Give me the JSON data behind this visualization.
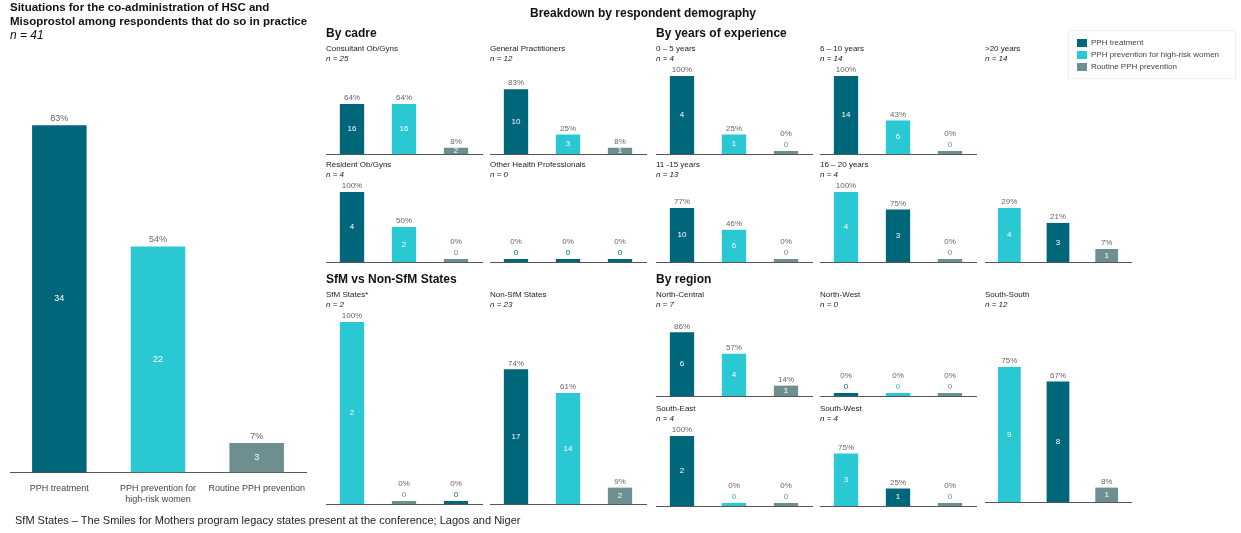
{
  "chart_data": [
    {
      "type": "bar",
      "title": "Situations for the co-administration of HSC and Misoprostol among respondents that do so in practice",
      "subtitle": "n = 41",
      "categories": [
        "PPH treatment",
        "PPH prevention for high-risk women",
        "Routine PPH prevention"
      ],
      "stacked": true,
      "series": [
        {
          "name": "PPH treatment",
          "color": "#00667a",
          "values": [
            83,
            null,
            null
          ],
          "value_labels": [
            "83%",
            null,
            null
          ]
        },
        {
          "name": "PPH prevention for high-risk women",
          "color": "#29c8d2",
          "values": [
            null,
            54,
            null
          ],
          "value_labels": [
            null,
            "54%",
            null
          ]
        },
        {
          "name": "Routine PPH prevention",
          "color": "#6e8f8f",
          "values": [
            null,
            null,
            7
          ],
          "value_labels": [
            null,
            null,
            "7%"
          ]
        }
      ],
      "annotations": [
        "34",
        "22",
        "3"
      ],
      "legend": "top right"
    },
    {
      "type": "other",
      "title": "Breakdown by respondent demography"
    },
    {
      "type": "other",
      "title": "By cadre"
    },
    {
      "type": "bar",
      "title": "Consultant Ob/Gyns",
      "subtitle": "n = 25",
      "categories": [
        null,
        null,
        null
      ],
      "values": [
        64,
        64,
        8
      ],
      "colors": [
        "#00667a",
        "#29c8d2",
        "#6e8f8f"
      ],
      "value_labels": [
        "64%",
        "64%",
        "8%"
      ],
      "annotations": [
        "16",
        "16",
        "2"
      ]
    },
    {
      "type": "bar",
      "title": "General Practitioners",
      "subtitle": "n = 12",
      "categories": [
        null,
        null,
        null
      ],
      "values": [
        83,
        25,
        8
      ],
      "colors": [
        "#00667a",
        "#29c8d2",
        "#6e8f8f"
      ],
      "value_labels": [
        "83%",
        "25%",
        "8%"
      ],
      "annotations": [
        "10",
        "3",
        "1"
      ]
    },
    {
      "type": "bar",
      "title": "Resident Ob/Gyns",
      "subtitle": "n = 4",
      "categories": [
        null,
        null,
        null
      ],
      "values": [
        100,
        50,
        0
      ],
      "colors": [
        "#00667a",
        "#29c8d2",
        "#6e8f8f"
      ],
      "value_labels": [
        "100%",
        "50%",
        "0%"
      ],
      "annotations": [
        "4",
        "2",
        "0"
      ]
    },
    {
      "type": "other",
      "title": "Other Health Professionals",
      "subtitle": "n = 0",
      "categories": [
        null,
        null,
        null
      ],
      "values": [
        0,
        0,
        0
      ],
      "colors": [
        "#00667a",
        "#00667a",
        "#00667a"
      ],
      "value_labels": [
        "0%",
        "0%",
        "0%"
      ],
      "annotations": [
        "0",
        "0",
        "0"
      ]
    },
    {
      "type": "other",
      "title": "SfM vs Non-SfM States"
    },
    {
      "type": "bar",
      "title": "SfM States*",
      "subtitle": "n = 2",
      "categories": [
        null,
        null,
        null
      ],
      "values": [
        100,
        0,
        0
      ],
      "colors": [
        "#29c8d2",
        "#6e8f8f",
        "#00667a"
      ],
      "value_labels": [
        "100%",
        "0%",
        "0%"
      ],
      "annotations": [
        "2",
        "0",
        "0"
      ]
    },
    {
      "type": "bar",
      "title": "Non-SfM States",
      "subtitle": "n = 23",
      "categories": [
        null,
        null,
        null
      ],
      "values": [
        74,
        61,
        9
      ],
      "colors": [
        "#00667a",
        "#29c8d2",
        "#6e8f8f"
      ],
      "value_labels": [
        "74%",
        "61%",
        "9%"
      ],
      "annotations": [
        "17",
        "14",
        "2"
      ]
    },
    {
      "type": "other",
      "title": "By years of experience"
    },
    {
      "type": "bar",
      "title": "0 – 5 years",
      "subtitle": "n = 4",
      "categories": [
        null,
        null,
        null
      ],
      "values": [
        100,
        25,
        0
      ],
      "colors": [
        "#00667a",
        "#29c8d2",
        "#6e8f8f"
      ],
      "value_labels": [
        "100%",
        "25%",
        "0%"
      ],
      "annotations": [
        "4",
        "1",
        "0"
      ]
    },
    {
      "type": "bar",
      "title": "6 – 10 years",
      "subtitle": "n = 14",
      "categories": [
        null,
        null,
        null
      ],
      "values": [
        100,
        43,
        0
      ],
      "colors": [
        "#00667a",
        "#29c8d2",
        "#6e8f8f"
      ],
      "value_labels": [
        "100%",
        "43%",
        "0%"
      ],
      "annotations": [
        "14",
        "6",
        "0"
      ]
    },
    {
      "type": "bar",
      "title": ">20 years",
      "subtitle": "n = 14",
      "categories": [
        null,
        null,
        null
      ],
      "values": [
        29,
        21,
        7
      ],
      "colors": [
        "#29c8d2",
        "#00667a",
        "#6e8f8f"
      ],
      "value_labels": [
        "29%",
        "21%",
        "7%"
      ],
      "annotations": [
        "4",
        "3",
        "1"
      ]
    },
    {
      "type": "bar",
      "title": "11 -15 years",
      "subtitle": "n = 13",
      "categories": [
        null,
        null,
        null
      ],
      "values": [
        77,
        46,
        0
      ],
      "colors": [
        "#00667a",
        "#29c8d2",
        "#6e8f8f"
      ],
      "value_labels": [
        "77%",
        "46%",
        "0%"
      ],
      "annotations": [
        "10",
        "6",
        "0"
      ]
    },
    {
      "type": "bar",
      "title": "16 – 20 years",
      "subtitle": "n = 4",
      "categories": [
        null,
        null,
        null
      ],
      "values": [
        100,
        75,
        0
      ],
      "colors": [
        "#29c8d2",
        "#00667a",
        "#6e8f8f"
      ],
      "value_labels": [
        "100%",
        "75%",
        "0%"
      ],
      "annotations": [
        "4",
        "3",
        "0"
      ]
    },
    {
      "type": "other",
      "title": "By region"
    },
    {
      "type": "bar",
      "title": "North-Central",
      "subtitle": "n = 7",
      "categories": [
        null,
        null,
        null
      ],
      "values": [
        86,
        57,
        14
      ],
      "colors": [
        "#00667a",
        "#29c8d2",
        "#6e8f8f"
      ],
      "value_labels": [
        "86%",
        "57%",
        "14%"
      ],
      "annotations": [
        "6",
        "4",
        "1"
      ]
    },
    {
      "type": "other",
      "title": "North-West",
      "subtitle": "n = 0",
      "categories": [
        null,
        null,
        null
      ],
      "values": [
        0,
        0,
        0
      ],
      "colors": [
        "#00667a",
        "#29c8d2",
        "#6e8f8f"
      ],
      "value_labels": [
        "0%",
        "0%",
        "0%"
      ],
      "annotations": [
        "0",
        "0",
        "0"
      ]
    },
    {
      "type": "bar",
      "title": "South-South",
      "subtitle": "n = 12",
      "categories": [
        null,
        null,
        null
      ],
      "values": [
        75,
        67,
        8
      ],
      "colors": [
        "#29c8d2",
        "#00667a",
        "#6e8f8f"
      ],
      "value_labels": [
        "75%",
        "67%",
        "8%"
      ],
      "annotations": [
        "9",
        "8",
        "1"
      ]
    },
    {
      "type": "bar",
      "title": "South-East",
      "subtitle": "n = 4",
      "categories": [
        null,
        null,
        null
      ],
      "values": [
        100,
        0,
        0
      ],
      "colors": [
        "#00667a",
        "#29c8d2",
        "#6e8f8f"
      ],
      "value_labels": [
        "100%",
        "0%",
        "0%"
      ],
      "annotations": [
        "2",
        "0",
        "0"
      ]
    },
    {
      "type": "bar",
      "title": "South-West",
      "subtitle": "n = 4",
      "categories": [
        null,
        null,
        null
      ],
      "values": [
        75,
        25,
        0
      ],
      "colors": [
        "#29c8d2",
        "#00667a",
        "#6e8f8f"
      ],
      "value_labels": [
        "75%",
        "25%",
        "0%"
      ],
      "annotations": [
        "3",
        "1",
        "0"
      ]
    },
    {
      "type": "other",
      "annotations": [
        "SfM States – The Smiles for Mothers program legacy states present at the conference; Lagos and Niger"
      ]
    }
  ]
}
